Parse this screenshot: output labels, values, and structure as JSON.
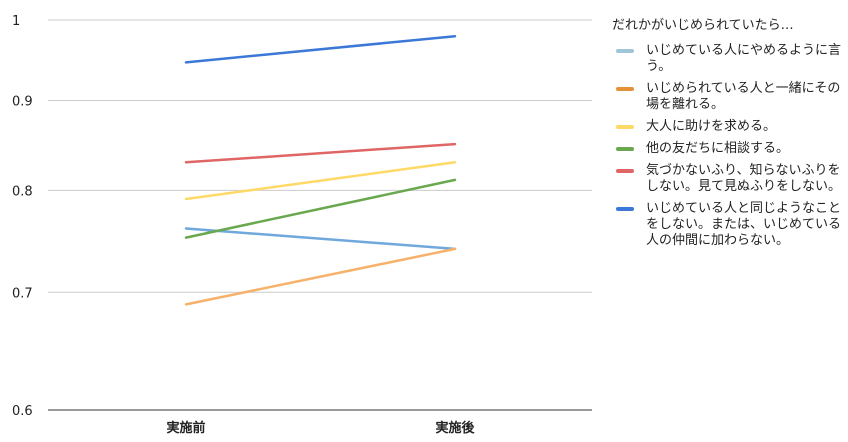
{
  "chart_data": {
    "type": "line",
    "categories": [
      "実施前",
      "実施後"
    ],
    "ylim": [
      0.6,
      1
    ],
    "yticks": [
      "0.6",
      "0.7",
      "0.8",
      "0.9",
      "1"
    ],
    "title": "",
    "xlabel": "",
    "ylabel": "",
    "grid": true,
    "legend_position": "right",
    "legend_title": "だれかがいじめられていたら…",
    "series": [
      {
        "name": "いじめている人にやめるように言う。",
        "color": "#6fa8dc",
        "values": [
          0.761,
          0.741
        ]
      },
      {
        "name": "いじめられている人と一緒にその場を離れる。",
        "color": "#f6b26b",
        "values": [
          0.689,
          0.741
        ]
      },
      {
        "name": "大人に助けを求める。",
        "color": "#ffd966",
        "values": [
          0.791,
          0.83
        ]
      },
      {
        "name": "他の友だちに相談する。",
        "color": "#6aa84f",
        "values": [
          0.752,
          0.811
        ]
      },
      {
        "name": "気づかないふり、知らないふりをしない。見て見ぬふりをしない。",
        "color": "#e06666",
        "values": [
          0.83,
          0.85
        ]
      },
      {
        "name": "いじめている人と同じようなことをしない。または、いじめている人の仲間に加わらない。",
        "color": "#3c78d8",
        "values": [
          0.946,
          0.979
        ]
      }
    ]
  },
  "legend_swatch_colors": [
    "#9fc5d8",
    "#e69138",
    "#ffd966",
    "#6aa84f",
    "#e06666",
    "#3c78d8"
  ]
}
